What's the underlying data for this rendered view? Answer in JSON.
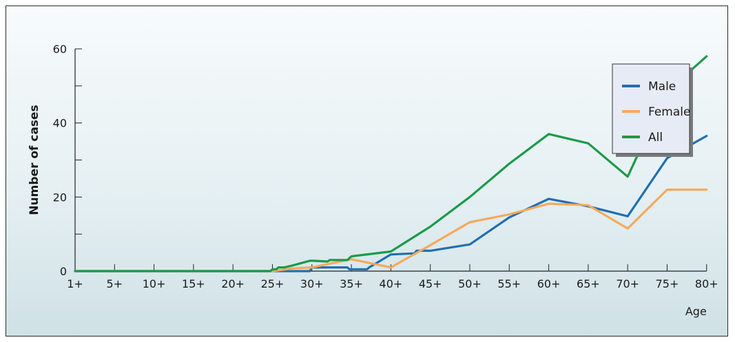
{
  "chart_data": {
    "type": "line",
    "title": "",
    "xlabel": "Age",
    "ylabel": "Number of cases",
    "ylim": [
      0,
      60
    ],
    "yticks": [
      0,
      20,
      40,
      60
    ],
    "categories": [
      "1+",
      "5+",
      "10+",
      "15+",
      "20+",
      "25+",
      "30+",
      "35+",
      "40+",
      "45+",
      "50+",
      "55+",
      "60+",
      "65+",
      "70+",
      "75+",
      "80+"
    ],
    "grid": false,
    "legend": "top-right",
    "series": [
      {
        "name": "Male",
        "color": "#1f6fb2",
        "x": [
          0,
          1,
          2,
          3,
          4,
          5,
          5.95,
          6.0,
          6.4,
          6.45,
          6.9,
          6.95,
          7.0,
          7.1,
          7.4,
          7.45,
          8.0,
          8.6,
          8.65,
          9.0,
          10.0,
          11.0,
          12.0,
          13.0,
          14.0,
          15.0,
          16.0
        ],
        "y": [
          0,
          0,
          0,
          0,
          0,
          0,
          0,
          1,
          1,
          1,
          1,
          0.5,
          0.5,
          0.5,
          0.5,
          1,
          4.5,
          4.8,
          5.5,
          5.5,
          7.2,
          14.5,
          19.5,
          17.5,
          14.8,
          30.5,
          36.5
        ]
      },
      {
        "name": "Female",
        "color": "#f5a95a",
        "x": [
          0,
          1,
          2,
          3,
          4,
          5,
          5.5,
          6.0,
          7.0,
          8.0,
          9.0,
          10.0,
          11.0,
          12.0,
          13.0,
          14.0,
          15.0,
          16.0
        ],
        "y": [
          0,
          0,
          0,
          0,
          0,
          0,
          0.7,
          1,
          3.2,
          1,
          7,
          13.2,
          15.3,
          18.2,
          17.8,
          11.5,
          22,
          22
        ]
      },
      {
        "name": "All",
        "color": "#1a9a48",
        "x": [
          0,
          1,
          2,
          3,
          4,
          4.95,
          5.0,
          5.1,
          5.15,
          5.3,
          5.5,
          5.95,
          6.0,
          6.4,
          6.45,
          6.9,
          6.95,
          7.0,
          8.0,
          9.0,
          10.0,
          11.0,
          12.0,
          13.0,
          14.0,
          15.0,
          16.0
        ],
        "y": [
          0,
          0,
          0,
          0,
          0,
          0,
          0.5,
          0.5,
          1,
          1,
          1.5,
          2.8,
          2.8,
          2.6,
          3,
          3,
          3.5,
          4,
          5.3,
          12,
          20,
          29,
          37,
          34.5,
          25.5,
          48.5,
          58
        ]
      }
    ]
  }
}
